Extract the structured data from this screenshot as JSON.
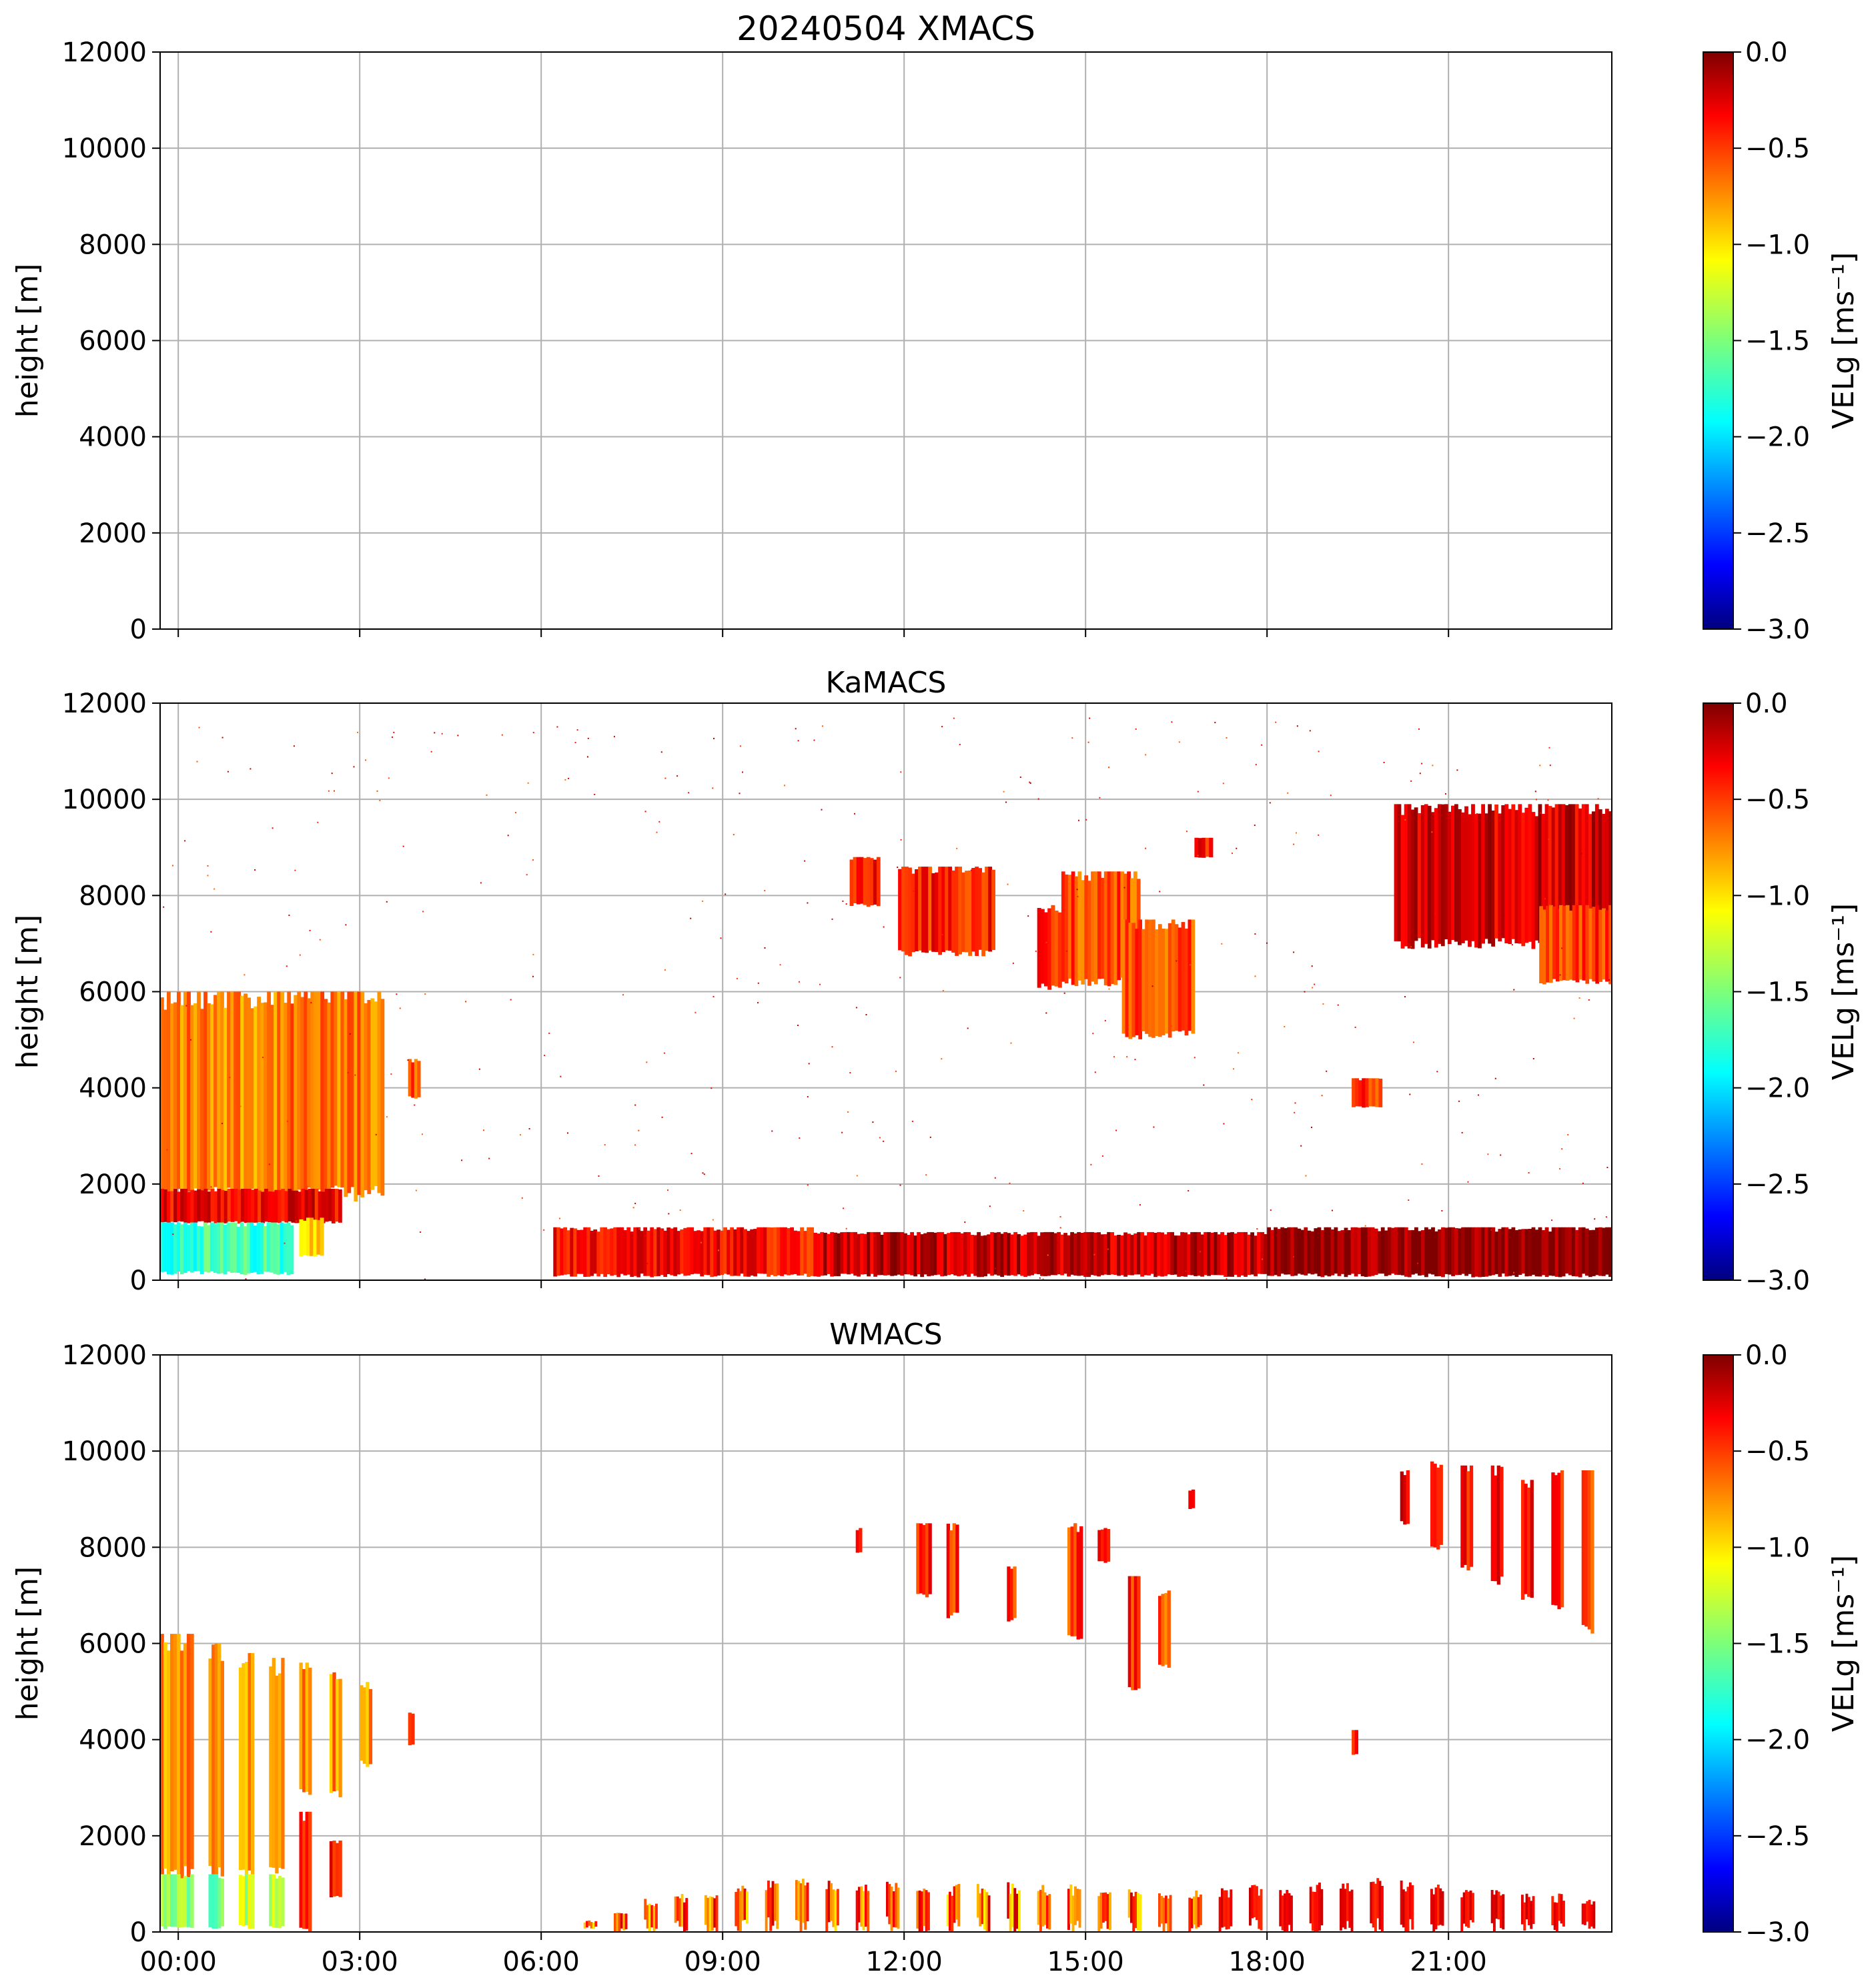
{
  "figure": {
    "title": "20240504 XMACS",
    "xticks": [
      "00:00",
      "03:00",
      "06:00",
      "09:00",
      "12:00",
      "15:00",
      "18:00",
      "21:00"
    ]
  },
  "chart_data": [
    {
      "type": "heatmap",
      "title": "20240504 XMACS",
      "ylabel": "height [m]",
      "xlim_hours": [
        -0.3,
        23.7
      ],
      "ylim": [
        0,
        12000
      ],
      "yticks": [
        0,
        2000,
        4000,
        6000,
        8000,
        10000,
        12000
      ],
      "xticks_hours": [
        0,
        3,
        6,
        9,
        12,
        15,
        18,
        21
      ],
      "grid": true,
      "colorbar": {
        "label": "VELg [ms⁻¹]",
        "range": [
          -3.0,
          0.0
        ],
        "ticks": [
          "0.0",
          "−0.5",
          "−1.0",
          "−1.5",
          "−2.0",
          "−2.5",
          "−3.0"
        ]
      },
      "regions": []
    },
    {
      "type": "heatmap",
      "title": "KaMACS",
      "ylabel": "height [m]",
      "xlim_hours": [
        -0.3,
        23.7
      ],
      "ylim": [
        0,
        12000
      ],
      "yticks": [
        0,
        2000,
        4000,
        6000,
        8000,
        10000,
        12000
      ],
      "xticks_hours": [
        0,
        3,
        6,
        9,
        12,
        15,
        18,
        21
      ],
      "grid": true,
      "colorbar": {
        "label": "VELg [ms⁻¹]",
        "range": [
          -3.0,
          0.0
        ],
        "ticks": [
          "0.0",
          "−0.5",
          "−1.0",
          "−1.5",
          "−2.0",
          "−2.5",
          "−3.0"
        ]
      },
      "regions": [
        {
          "t0": -0.3,
          "t1": 3.4,
          "h0": 1800,
          "h1": 6000,
          "v": -0.75
        },
        {
          "t0": -0.3,
          "t1": 2.7,
          "h0": 1200,
          "h1": 1900,
          "v": -0.35
        },
        {
          "t0": -0.3,
          "t1": 1.9,
          "h0": 150,
          "h1": 1200,
          "v": -1.7
        },
        {
          "t0": 2.0,
          "t1": 2.4,
          "h0": 500,
          "h1": 1300,
          "v": -0.9
        },
        {
          "t0": 3.8,
          "t1": 4.0,
          "h0": 3800,
          "h1": 4600,
          "v": -0.6
        },
        {
          "t0": 6.2,
          "t1": 10.5,
          "h0": 100,
          "h1": 1100,
          "v": -0.4
        },
        {
          "t0": 10.5,
          "t1": 18.0,
          "h0": 100,
          "h1": 1000,
          "v": -0.2
        },
        {
          "t0": 18.0,
          "t1": 23.7,
          "h0": 100,
          "h1": 1100,
          "v": -0.05
        },
        {
          "t0": 11.1,
          "t1": 11.6,
          "h0": 7800,
          "h1": 8800,
          "v": -0.45
        },
        {
          "t0": 11.9,
          "t1": 13.5,
          "h0": 6800,
          "h1": 8600,
          "v": -0.45
        },
        {
          "t0": 14.2,
          "t1": 14.6,
          "h0": 6100,
          "h1": 7800,
          "v": -0.5
        },
        {
          "t0": 14.6,
          "t1": 15.9,
          "h0": 6200,
          "h1": 8500,
          "v": -0.6
        },
        {
          "t0": 15.6,
          "t1": 16.8,
          "h0": 5100,
          "h1": 7500,
          "v": -0.6
        },
        {
          "t0": 16.8,
          "t1": 17.1,
          "h0": 8800,
          "h1": 9200,
          "v": -0.4
        },
        {
          "t0": 19.4,
          "t1": 19.9,
          "h0": 3600,
          "h1": 4200,
          "v": -0.5
        },
        {
          "t0": 20.1,
          "t1": 23.7,
          "h0": 7000,
          "h1": 9900,
          "v": -0.25
        },
        {
          "t0": 22.5,
          "t1": 23.7,
          "h0": 6200,
          "h1": 7800,
          "v": -0.55
        }
      ]
    },
    {
      "type": "heatmap",
      "title": "WMACS",
      "ylabel": "height [m]",
      "xlim_hours": [
        -0.3,
        23.7
      ],
      "ylim": [
        0,
        12000
      ],
      "yticks": [
        0,
        2000,
        4000,
        6000,
        8000,
        10000,
        12000
      ],
      "xticks_hours": [
        0,
        3,
        6,
        9,
        12,
        15,
        18,
        21
      ],
      "grid": true,
      "colorbar": {
        "label": "VELg [ms⁻¹]",
        "range": [
          -3.0,
          0.0
        ],
        "ticks": [
          "0.0",
          "−0.5",
          "−1.0",
          "−1.5",
          "−2.0",
          "−2.5",
          "−3.0"
        ]
      },
      "regions": [
        {
          "t0": -0.3,
          "t1": 0.25,
          "h0": 1200,
          "h1": 6200,
          "v": -0.8
        },
        {
          "t0": -0.3,
          "t1": 0.25,
          "h0": 100,
          "h1": 1200,
          "v": -1.5
        },
        {
          "t0": 0.5,
          "t1": 0.75,
          "h0": 1200,
          "h1": 6000,
          "v": -0.8
        },
        {
          "t0": 0.5,
          "t1": 0.75,
          "h0": 100,
          "h1": 1200,
          "v": -1.6
        },
        {
          "t0": 1.0,
          "t1": 1.25,
          "h0": 1200,
          "h1": 5800,
          "v": -0.8
        },
        {
          "t0": 1.0,
          "t1": 1.25,
          "h0": 100,
          "h1": 1200,
          "v": -1.3
        },
        {
          "t0": 1.5,
          "t1": 1.75,
          "h0": 1200,
          "h1": 5700,
          "v": -0.85
        },
        {
          "t0": 1.5,
          "t1": 1.75,
          "h0": 100,
          "h1": 1200,
          "v": -1.4
        },
        {
          "t0": 2.0,
          "t1": 2.2,
          "h0": 2900,
          "h1": 5600,
          "v": -0.8
        },
        {
          "t0": 2.0,
          "t1": 2.2,
          "h0": 100,
          "h1": 2500,
          "v": -0.6
        },
        {
          "t0": 2.5,
          "t1": 2.7,
          "h0": 2900,
          "h1": 5400,
          "v": -0.8
        },
        {
          "t0": 2.5,
          "t1": 2.7,
          "h0": 700,
          "h1": 1900,
          "v": -0.4
        },
        {
          "t0": 3.0,
          "t1": 3.2,
          "h0": 3500,
          "h1": 5200,
          "v": -0.8
        },
        {
          "t0": 3.8,
          "t1": 3.9,
          "h0": 3900,
          "h1": 4600,
          "v": -0.6
        },
        {
          "t0": 11.2,
          "t1": 11.3,
          "h0": 7900,
          "h1": 8400,
          "v": -0.5
        },
        {
          "t0": 12.2,
          "t1": 12.45,
          "h0": 7000,
          "h1": 8500,
          "v": -0.4
        },
        {
          "t0": 12.7,
          "t1": 12.9,
          "h0": 6600,
          "h1": 8500,
          "v": -0.5
        },
        {
          "t0": 13.7,
          "t1": 13.85,
          "h0": 6500,
          "h1": 7600,
          "v": -0.5
        },
        {
          "t0": 14.7,
          "t1": 14.95,
          "h0": 6100,
          "h1": 8500,
          "v": -0.55
        },
        {
          "t0": 15.2,
          "t1": 15.4,
          "h0": 7700,
          "h1": 8400,
          "v": -0.3
        },
        {
          "t0": 15.7,
          "t1": 15.9,
          "h0": 5100,
          "h1": 7400,
          "v": -0.5
        },
        {
          "t0": 16.2,
          "t1": 16.4,
          "h0": 5500,
          "h1": 7100,
          "v": -0.6
        },
        {
          "t0": 16.7,
          "t1": 16.8,
          "h0": 8800,
          "h1": 9200,
          "v": -0.5
        },
        {
          "t0": 19.4,
          "t1": 19.5,
          "h0": 3700,
          "h1": 4200,
          "v": -0.5
        },
        {
          "t0": 20.2,
          "t1": 20.35,
          "h0": 8500,
          "h1": 9600,
          "v": -0.35
        },
        {
          "t0": 20.7,
          "t1": 20.9,
          "h0": 8000,
          "h1": 9800,
          "v": -0.3
        },
        {
          "t0": 21.2,
          "t1": 21.4,
          "h0": 7600,
          "h1": 9700,
          "v": -0.45
        },
        {
          "t0": 21.7,
          "t1": 21.9,
          "h0": 7300,
          "h1": 9700,
          "v": -0.35
        },
        {
          "t0": 22.2,
          "t1": 22.4,
          "h0": 7000,
          "h1": 9400,
          "v": -0.4
        },
        {
          "t0": 22.7,
          "t1": 22.9,
          "h0": 6800,
          "h1": 9600,
          "v": -0.45
        },
        {
          "t0": 23.2,
          "t1": 23.4,
          "h0": 6300,
          "h1": 9600,
          "v": -0.55
        }
      ],
      "low_bars_hours": [
        6.2,
        6.7,
        7.2,
        7.7,
        8.2,
        8.7,
        9.2,
        9.7,
        10.2,
        10.7,
        11.2,
        11.7,
        12.2,
        12.7,
        13.2,
        13.7,
        14.2,
        14.7,
        15.2,
        15.7,
        16.2,
        16.7,
        17.2,
        17.7,
        18.2,
        18.7,
        19.2,
        19.7,
        20.2,
        20.7,
        21.2,
        21.7,
        22.2,
        22.7,
        23.2
      ],
      "low_bars_top_m": [
        100,
        250,
        500,
        700,
        800,
        900,
        1000,
        1100,
        1200,
        1100,
        1100,
        1050,
        1100,
        1000,
        1000,
        1050,
        1000,
        1000,
        900,
        900,
        900,
        900,
        950,
        1000,
        1000,
        1100,
        1100,
        1200,
        1100,
        1000,
        900,
        900,
        800,
        800,
        700
      ]
    }
  ]
}
